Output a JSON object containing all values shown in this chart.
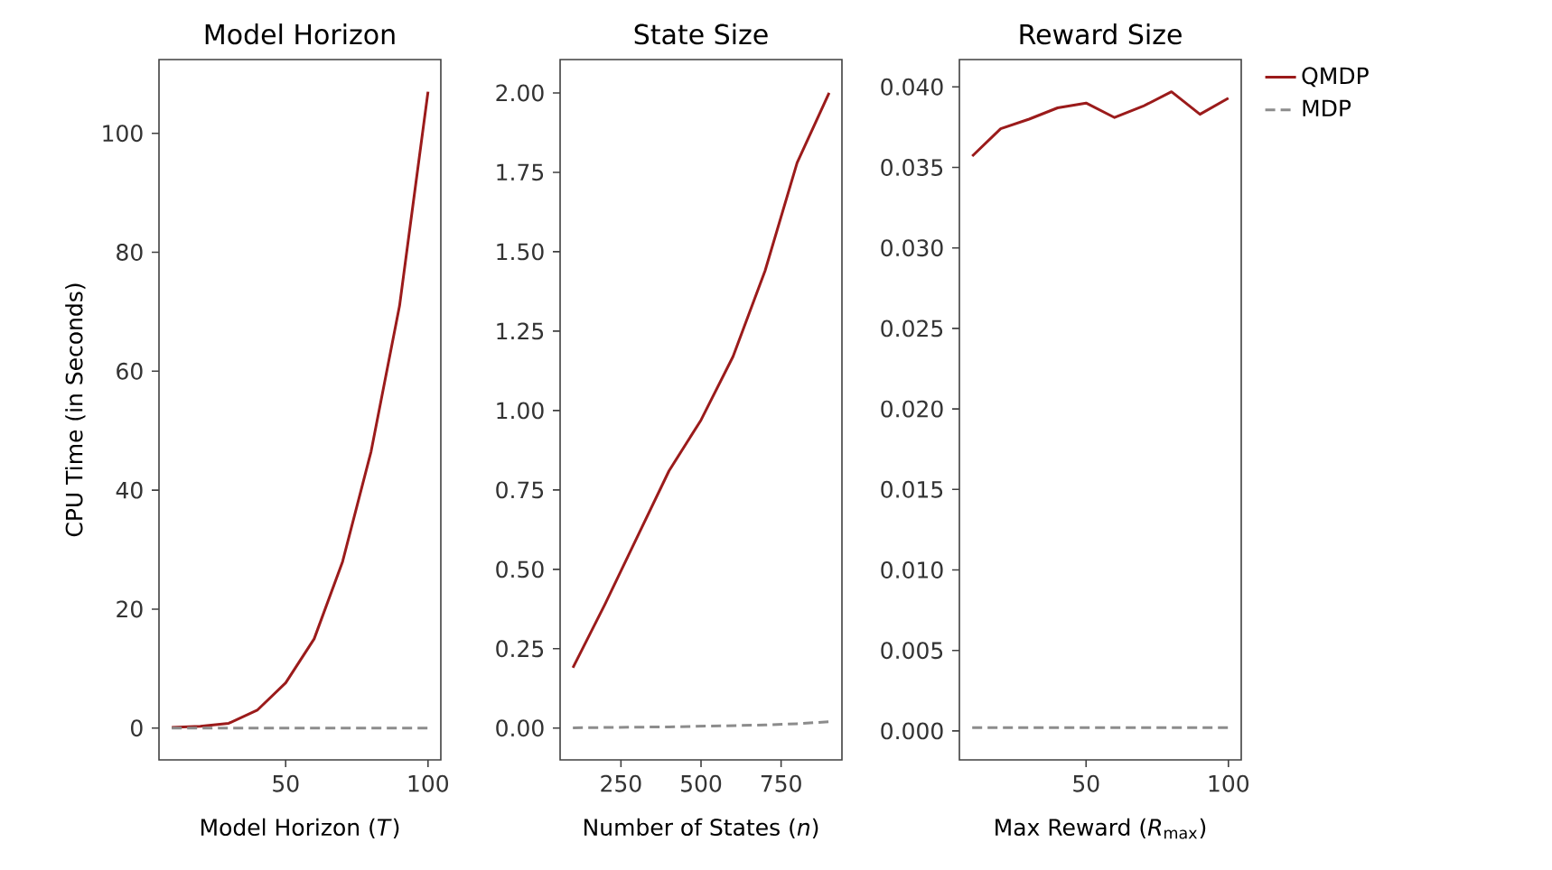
{
  "chart_data": [
    {
      "type": "line",
      "title": "Model Horizon",
      "xlabel": "Model Horizon (*T*)",
      "ylabel": "CPU Time (in Seconds)",
      "x": [
        10,
        20,
        30,
        40,
        50,
        60,
        70,
        80,
        90,
        100
      ],
      "xlim": [
        5.5,
        104.5
      ],
      "xticks": [
        50,
        100
      ],
      "ylim": [
        -5.35,
        112.4
      ],
      "yticks": [
        0,
        20,
        40,
        60,
        80,
        100
      ],
      "series": [
        {
          "color": "#9b1b1b",
          "line_style": "solid",
          "values": [
            0.1,
            0.3,
            0.8,
            3,
            7.6,
            15,
            28,
            46.5,
            71,
            107
          ]
        },
        {
          "color": "#8c8c8c",
          "line_style": "dashed",
          "values": [
            0,
            0,
            0,
            0,
            0,
            0,
            0,
            0,
            0,
            0
          ]
        }
      ]
    },
    {
      "type": "line",
      "title": "State Size",
      "xlabel": "Number of States (*n*)",
      "x": [
        100,
        200,
        300,
        400,
        500,
        600,
        700,
        800,
        900
      ],
      "xlim": [
        60,
        940
      ],
      "xticks": [
        250,
        500,
        750
      ],
      "ylim": [
        -0.1,
        2.105
      ],
      "yticks": [
        {
          "value": 0,
          "label": "0.00"
        },
        {
          "value": 0.25,
          "label": "0.25"
        },
        {
          "value": 0.5,
          "label": "0.50"
        },
        {
          "value": 0.75,
          "label": "0.75"
        },
        {
          "value": 1,
          "label": "1.00"
        },
        {
          "value": 1.25,
          "label": "1.25"
        },
        {
          "value": 1.5,
          "label": "1.50"
        },
        {
          "value": 1.75,
          "label": "1.75"
        },
        {
          "value": 2,
          "label": "2.00"
        }
      ],
      "series": [
        {
          "color": "#9b1b1b",
          "line_style": "solid",
          "values": [
            0.19,
            0.39,
            0.6,
            0.81,
            0.97,
            1.17,
            1.44,
            1.78,
            2.0
          ]
        },
        {
          "color": "#8c8c8c",
          "line_style": "dashed",
          "values": [
            0.001,
            0.002,
            0.003,
            0.004,
            0.006,
            0.008,
            0.01,
            0.014,
            0.02
          ]
        }
      ]
    },
    {
      "type": "line",
      "title": "Reward Size",
      "xlabel": "Max Reward (*R*$_{max}$)",
      "x": [
        10,
        20,
        30,
        40,
        50,
        60,
        70,
        80,
        90,
        100
      ],
      "xlim": [
        5.5,
        104.5
      ],
      "xticks": [
        50,
        100
      ],
      "ylim": [
        -0.0018,
        0.0417
      ],
      "yticks": [
        {
          "value": 0,
          "label": "0.000"
        },
        {
          "value": 0.005,
          "label": "0.005"
        },
        {
          "value": 0.01,
          "label": "0.010"
        },
        {
          "value": 0.015,
          "label": "0.015"
        },
        {
          "value": 0.02,
          "label": "0.020"
        },
        {
          "value": 0.025,
          "label": "0.025"
        },
        {
          "value": 0.03,
          "label": "0.030"
        },
        {
          "value": 0.035,
          "label": "0.035"
        },
        {
          "value": 0.04,
          "label": "0.040"
        }
      ],
      "legend": "top right",
      "series": [
        {
          "name": "QMDP",
          "color": "#9b1b1b",
          "line_style": "solid",
          "values": [
            0.0357,
            0.0374,
            0.038,
            0.0387,
            0.039,
            0.0381,
            0.0388,
            0.0397,
            0.0383,
            0.0393
          ]
        },
        {
          "name": "MDP",
          "color": "#8c8c8c",
          "line_style": "dashed",
          "values": [
            0.0002,
            0.0002,
            0.0002,
            0.0002,
            0.0002,
            0.0002,
            0.0002,
            0.0002,
            0.0002,
            0.0002
          ]
        }
      ]
    }
  ]
}
